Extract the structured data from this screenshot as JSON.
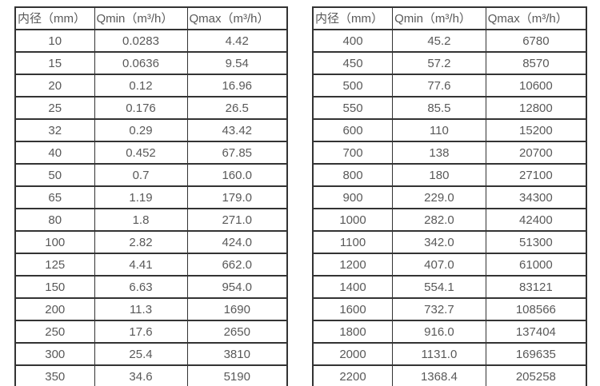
{
  "colors": {
    "border": "#333333",
    "text": "#595959",
    "background": "#ffffff"
  },
  "tables": [
    {
      "name": "flow-rate-table-small-diameters",
      "headers": [
        "内径（mm）",
        "Qmin（m³/h）",
        "Qmax（m³/h）"
      ],
      "rows": [
        [
          "10",
          "0.0283",
          "4.42"
        ],
        [
          "15",
          "0.0636",
          "9.54"
        ],
        [
          "20",
          "0.12",
          "16.96"
        ],
        [
          "25",
          "0.176",
          "26.5"
        ],
        [
          "32",
          "0.29",
          "43.42"
        ],
        [
          "40",
          "0.452",
          "67.85"
        ],
        [
          "50",
          "0.7",
          "160.0"
        ],
        [
          "65",
          "1.19",
          "179.0"
        ],
        [
          "80",
          "1.8",
          "271.0"
        ],
        [
          "100",
          "2.82",
          "424.0"
        ],
        [
          "125",
          "4.41",
          "662.0"
        ],
        [
          "150",
          "6.63",
          "954.0"
        ],
        [
          "200",
          "11.3",
          "1690"
        ],
        [
          "250",
          "17.6",
          "2650"
        ],
        [
          "300",
          "25.4",
          "3810"
        ],
        [
          "350",
          "34.6",
          "5190"
        ]
      ]
    },
    {
      "name": "flow-rate-table-large-diameters",
      "headers": [
        "内径（mm）",
        "Qmin（m³/h）",
        "Qmax（m³/h）"
      ],
      "rows": [
        [
          "400",
          "45.2",
          "6780"
        ],
        [
          "450",
          "57.2",
          "8570"
        ],
        [
          "500",
          "77.6",
          "10600"
        ],
        [
          "550",
          "85.5",
          "12800"
        ],
        [
          "600",
          "110",
          "15200"
        ],
        [
          "700",
          "138",
          "20700"
        ],
        [
          "800",
          "180",
          "27100"
        ],
        [
          "900",
          "229.0",
          "34300"
        ],
        [
          "1000",
          "282.0",
          "42400"
        ],
        [
          "1100",
          "342.0",
          "51300"
        ],
        [
          "1200",
          "407.0",
          "61000"
        ],
        [
          "1400",
          "554.1",
          "83121"
        ],
        [
          "1600",
          "732.7",
          "108566"
        ],
        [
          "1800",
          "916.0",
          "137404"
        ],
        [
          "2000",
          "1131.0",
          "169635"
        ],
        [
          "2200",
          "1368.4",
          "205258"
        ]
      ]
    }
  ]
}
